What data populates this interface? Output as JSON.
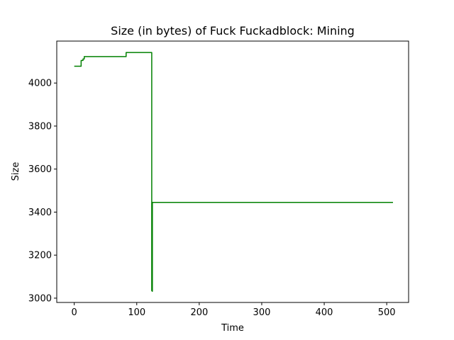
{
  "chart_data": {
    "type": "line",
    "title": "Size (in bytes) of Fuck Fuckadblock: Mining",
    "xlabel": "Time",
    "ylabel": "Size",
    "xlim": [
      -28,
      535
    ],
    "ylim": [
      2980,
      4195
    ],
    "x_ticks": [
      0,
      100,
      200,
      300,
      400,
      500
    ],
    "y_ticks": [
      3000,
      3200,
      3400,
      3600,
      3800,
      4000
    ],
    "grid": false,
    "legend": "none",
    "series": [
      {
        "color": "#008000",
        "x": [
          0,
          11,
          11,
          14,
          14,
          16,
          16,
          83,
          83,
          124,
          124,
          125,
          125,
          510
        ],
        "y": [
          4078,
          4078,
          4105,
          4105,
          4112,
          4112,
          4123,
          4123,
          4142,
          4142,
          3035,
          3032,
          3445,
          3445
        ]
      }
    ]
  }
}
